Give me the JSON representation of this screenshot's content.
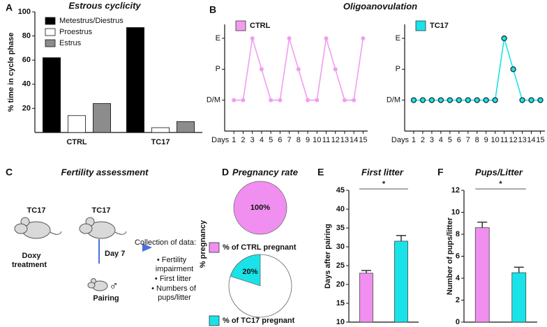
{
  "chart_data": [
    {
      "panel": "A",
      "type": "bar",
      "title": "Estrous cyclicity",
      "y_label": "% time in cycle phase",
      "categories": [
        "CTRL",
        "TC17"
      ],
      "series": [
        {
          "name": "Metestrus/Diestrus",
          "color": "#000000",
          "values": [
            62,
            87
          ]
        },
        {
          "name": "Proestrus",
          "color": "#ffffff",
          "values": [
            14,
            4
          ]
        },
        {
          "name": "Estrus",
          "color": "#8c8c8c",
          "values": [
            24,
            9
          ]
        }
      ],
      "ylim": [
        0,
        100
      ],
      "yticks": [
        20,
        40,
        60,
        80,
        100
      ],
      "legend": "upper left"
    },
    {
      "panel": "B",
      "type": "line",
      "title": "Oligoanovulation",
      "x_label": "Days",
      "x": [
        1,
        2,
        3,
        4,
        5,
        6,
        7,
        8,
        9,
        10,
        11,
        12,
        13,
        14,
        15
      ],
      "xlim": [
        0,
        15.5
      ],
      "xticks": [
        1,
        2,
        3,
        4,
        5,
        6,
        7,
        8,
        9,
        10,
        11,
        12,
        13,
        14,
        15
      ],
      "ylim": [
        -1,
        2.45
      ],
      "yticks": [
        {
          "value": 0,
          "label": "D/M"
        },
        {
          "value": 1,
          "label": "P"
        },
        {
          "value": 2,
          "label": "E"
        }
      ],
      "series": [
        {
          "name": "CTRL",
          "color": "#f29cf0",
          "values": [
            0,
            0,
            2,
            1,
            0,
            0,
            2,
            1,
            0,
            0,
            2,
            1,
            0,
            0,
            2
          ]
        }
      ],
      "legend": "upper left"
    },
    {
      "type": "line",
      "x_label": "Days",
      "x": [
        1,
        2,
        3,
        4,
        5,
        6,
        7,
        8,
        9,
        10,
        11,
        12,
        13,
        14,
        15
      ],
      "xlim": [
        0,
        15.5
      ],
      "xticks": [
        1,
        2,
        3,
        4,
        5,
        6,
        7,
        8,
        9,
        10,
        11,
        12,
        13,
        14,
        15
      ],
      "ylim": [
        -1,
        2.45
      ],
      "yticks": [
        {
          "value": 0,
          "label": "D/M"
        },
        {
          "value": 1,
          "label": "P"
        },
        {
          "value": 2,
          "label": "E"
        }
      ],
      "series": [
        {
          "name": "TC17",
          "color": "#19e3e8",
          "marker_edgecolor": "#1f3b3b",
          "values": [
            0,
            0,
            0,
            0,
            0,
            0,
            0,
            0,
            0,
            0,
            2,
            1,
            0,
            0,
            0
          ]
        }
      ],
      "legend": "upper left"
    },
    {
      "panel": "D",
      "type": "pie",
      "title": "Pregnancy rate",
      "y_label": "% pregnancy",
      "categories": [
        "% of CTRL pregnant"
      ],
      "values": [
        100
      ],
      "value_labels": [
        "100%"
      ],
      "color": "#f08ff0"
    },
    {
      "type": "pie",
      "categories": [
        "% of TC17 pregnant"
      ],
      "values": [
        20
      ],
      "value_labels": [
        "20%"
      ],
      "color": "#19e3e8"
    },
    {
      "panel": "E",
      "type": "bar",
      "title": "First litter",
      "y_label": "Days after pairing",
      "categories": [
        "CTRL",
        "TC17"
      ],
      "values": [
        23,
        31.5
      ],
      "errors": [
        0.7,
        1.5
      ],
      "colors": [
        "#f08ff0",
        "#19e3e8"
      ],
      "ylim": [
        10,
        45
      ],
      "yticks": [
        10,
        15,
        20,
        25,
        30,
        35,
        40,
        45
      ],
      "significance": "*"
    },
    {
      "panel": "F",
      "type": "bar",
      "title": "Pups/Litter",
      "y_label": "Number of pups/litter",
      "categories": [
        "CTRL",
        "TC17"
      ],
      "values": [
        8.6,
        4.5
      ],
      "errors": [
        0.5,
        0.5
      ],
      "colors": [
        "#f08ff0",
        "#19e3e8"
      ],
      "ylim": [
        0,
        12
      ],
      "yticks": [
        0,
        2,
        4,
        6,
        8,
        10,
        12
      ],
      "significance": "*"
    }
  ],
  "diagram": {
    "panel": "C",
    "title": "Fertility assessment",
    "start_group": "TC17",
    "pair_group": "TC17",
    "treatment": [
      "Doxy",
      "treatment"
    ],
    "day": "Day 7",
    "pairing": "Pairing",
    "male": "♂",
    "data_heading": "Collection of data:",
    "data_items": [
      "• Fertility",
      "impairment",
      "• First litter",
      "• Numbers of",
      "pups/litter"
    ]
  }
}
